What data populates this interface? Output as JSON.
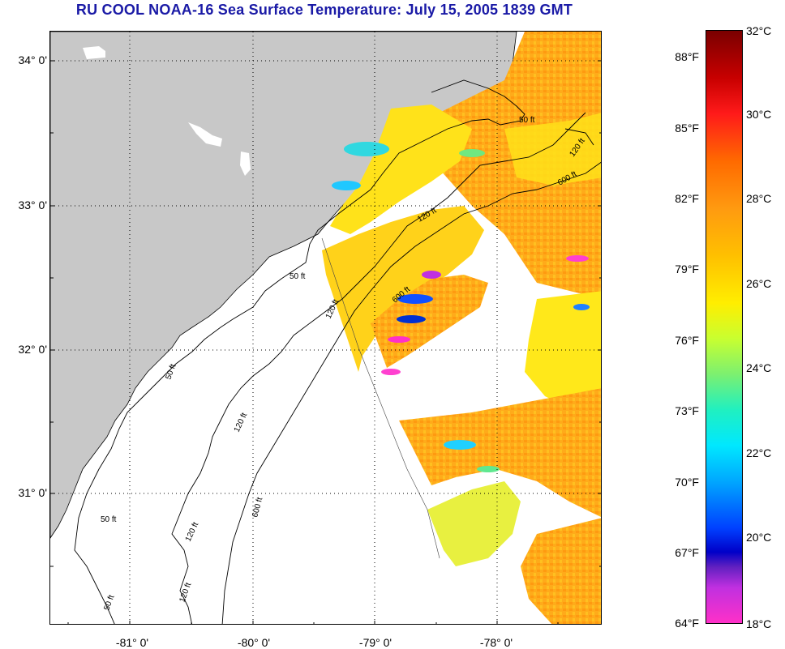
{
  "title": "RU COOL  NOAA-16  Sea Surface Temperature:  July 15, 2005 1839 GMT",
  "lat_labels": [
    "34° 0'",
    "33° 0'",
    "32° 0'",
    "31° 0'"
  ],
  "lon_labels": [
    "-81° 0'",
    "-80° 0'",
    "-79° 0'",
    "-78° 0'"
  ],
  "contour_labels": [
    "50 ft",
    "120 ft",
    "600 ft"
  ],
  "colorbar": {
    "fahrenheit": [
      "88°F",
      "85°F",
      "82°F",
      "79°F",
      "76°F",
      "73°F",
      "70°F",
      "67°F",
      "64°F"
    ],
    "celsius": [
      "32°C",
      "30°C",
      "28°C",
      "26°C",
      "24°C",
      "22°C",
      "20°C",
      "18°C"
    ],
    "range_c": [
      18,
      32
    ],
    "range_f": [
      64,
      90
    ]
  },
  "colors": {
    "land": "#c8c8c8",
    "title": "#1a1aa6",
    "warm": "#ffa500",
    "mild": "#ffe000",
    "cool": "#00c8ff"
  }
}
